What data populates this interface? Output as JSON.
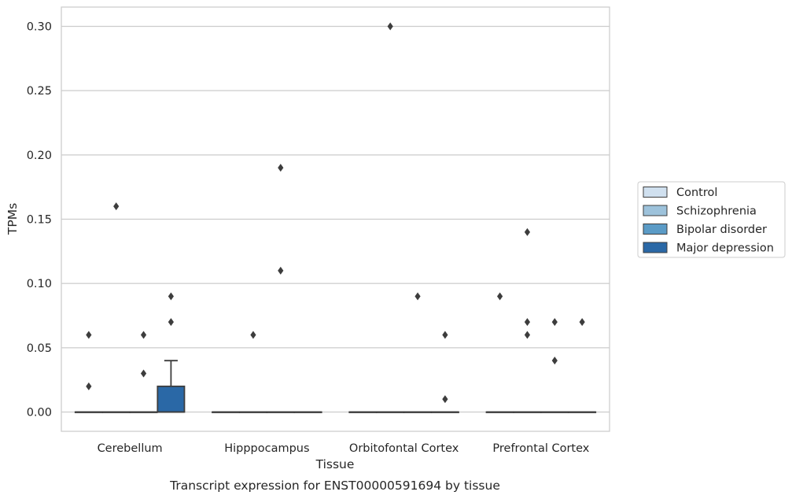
{
  "caption": "Transcript expression for ENST00000591694 by tissue",
  "chart_data": {
    "type": "box",
    "title": "",
    "xlabel": "Tissue",
    "ylabel": "TPMs",
    "ylim": [
      -0.015,
      0.315
    ],
    "yticks": [
      0.0,
      0.05,
      0.1,
      0.15,
      0.2,
      0.25,
      0.3
    ],
    "ytick_labels": [
      "0.00",
      "0.05",
      "0.10",
      "0.15",
      "0.20",
      "0.25",
      "0.30"
    ],
    "grid": "horizontal",
    "legend_position": "right",
    "categories": [
      "Cerebellum",
      "Hipppocampus",
      "Orbitofontal Cortex",
      "Prefrontal Cortex"
    ],
    "series": [
      {
        "name": "Control",
        "color": "#d0e0ef",
        "boxes": [
          {
            "q1": 0,
            "median": 0,
            "q3": 0,
            "whisker_low": 0,
            "whisker_high": 0,
            "outliers": [
              0.02,
              0.06
            ]
          },
          {
            "q1": 0,
            "median": 0,
            "q3": 0,
            "whisker_low": 0,
            "whisker_high": 0,
            "outliers": []
          },
          {
            "q1": 0,
            "median": 0,
            "q3": 0,
            "whisker_low": 0,
            "whisker_high": 0,
            "outliers": []
          },
          {
            "q1": 0,
            "median": 0,
            "q3": 0,
            "whisker_low": 0,
            "whisker_high": 0,
            "outliers": [
              0.09
            ]
          }
        ]
      },
      {
        "name": "Schizophrenia",
        "color": "#9dc2db",
        "boxes": [
          {
            "q1": 0,
            "median": 0,
            "q3": 0,
            "whisker_low": 0,
            "whisker_high": 0,
            "outliers": [
              0.16
            ]
          },
          {
            "q1": 0,
            "median": 0,
            "q3": 0,
            "whisker_low": 0,
            "whisker_high": 0,
            "outliers": [
              0.06
            ]
          },
          {
            "q1": 0,
            "median": 0,
            "q3": 0,
            "whisker_low": 0,
            "whisker_high": 0,
            "outliers": [
              0.3
            ]
          },
          {
            "q1": 0,
            "median": 0,
            "q3": 0,
            "whisker_low": 0,
            "whisker_high": 0,
            "outliers": [
              0.14,
              0.07,
              0.06
            ]
          }
        ]
      },
      {
        "name": "Bipolar disorder",
        "color": "#5b9bc6",
        "boxes": [
          {
            "q1": 0,
            "median": 0,
            "q3": 0,
            "whisker_low": 0,
            "whisker_high": 0,
            "outliers": [
              0.06,
              0.03
            ]
          },
          {
            "q1": 0,
            "median": 0,
            "q3": 0,
            "whisker_low": 0,
            "whisker_high": 0,
            "outliers": [
              0.19,
              0.11
            ]
          },
          {
            "q1": 0,
            "median": 0,
            "q3": 0,
            "whisker_low": 0,
            "whisker_high": 0,
            "outliers": [
              0.09
            ]
          },
          {
            "q1": 0,
            "median": 0,
            "q3": 0,
            "whisker_low": 0,
            "whisker_high": 0,
            "outliers": [
              0.07,
              0.04
            ]
          }
        ]
      },
      {
        "name": "Major depression",
        "color": "#2a68a6",
        "boxes": [
          {
            "q1": 0,
            "median": 0,
            "q3": 0.02,
            "whisker_low": 0,
            "whisker_high": 0.04,
            "outliers": [
              0.09,
              0.07
            ]
          },
          {
            "q1": 0,
            "median": 0,
            "q3": 0,
            "whisker_low": 0,
            "whisker_high": 0,
            "outliers": []
          },
          {
            "q1": 0,
            "median": 0,
            "q3": 0,
            "whisker_low": 0,
            "whisker_high": 0,
            "outliers": [
              0.06,
              0.01
            ]
          },
          {
            "q1": 0,
            "median": 0,
            "q3": 0,
            "whisker_low": 0,
            "whisker_high": 0,
            "outliers": [
              0.07
            ]
          }
        ]
      }
    ]
  }
}
